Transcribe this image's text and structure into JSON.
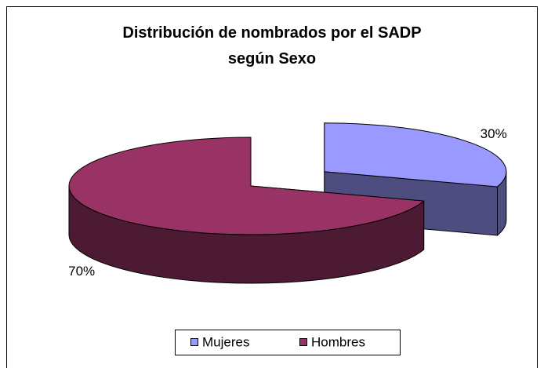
{
  "chart_data": {
    "type": "pie3d",
    "title": "Distribución de nombrados por el SADP según Sexo",
    "categories": [
      "Mujeres",
      "Hombres"
    ],
    "values": [
      30,
      70
    ],
    "value_labels": [
      "30%",
      "70%"
    ],
    "colors": [
      "#9999ff",
      "#993366"
    ],
    "legend": "bottom"
  }
}
